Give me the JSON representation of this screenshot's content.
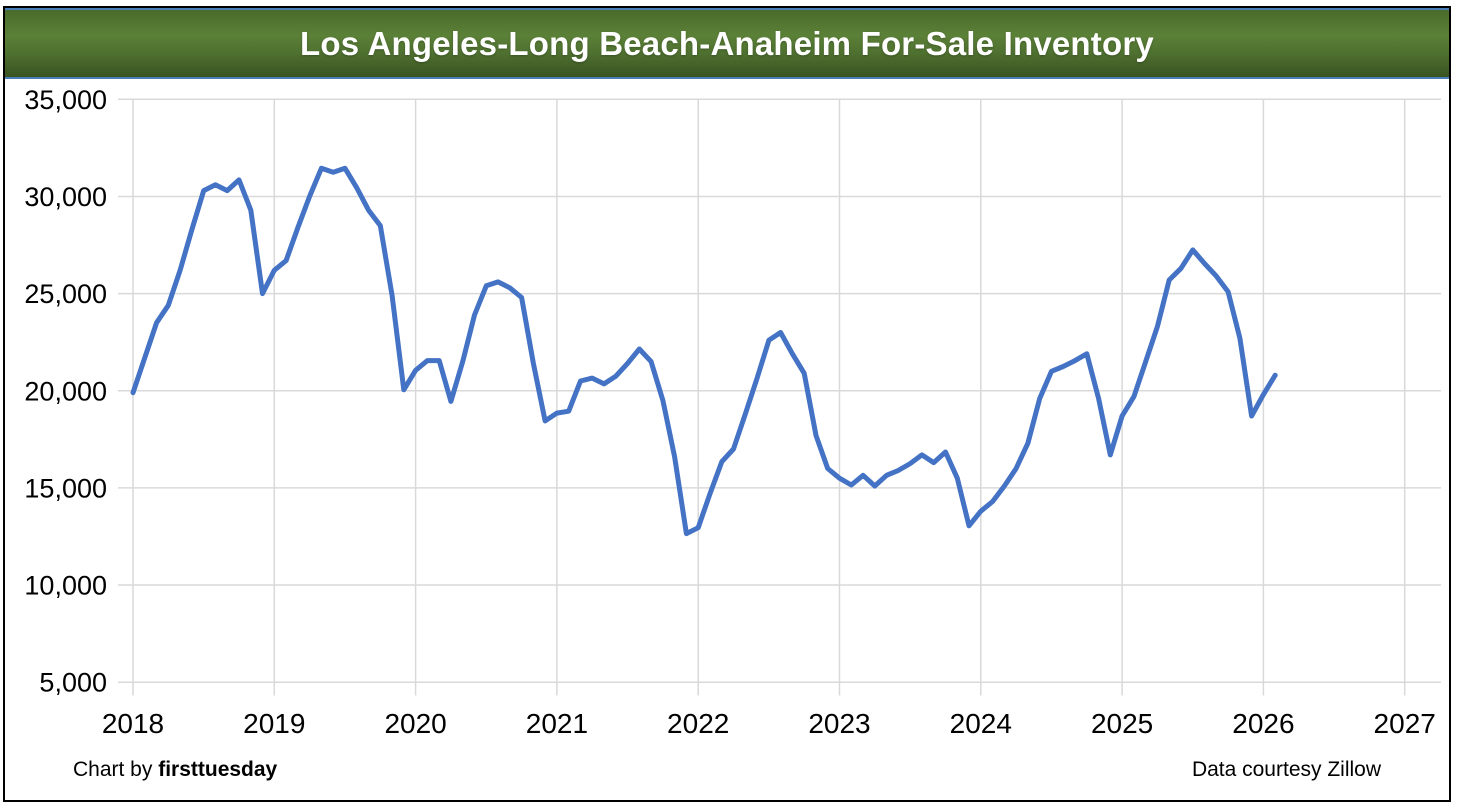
{
  "chart_data": {
    "type": "line",
    "title": "Los Angeles-Long Beach-Anaheim For-Sale Inventory",
    "xlabel": "",
    "ylabel": "",
    "x_axis": {
      "tick_labels": [
        "2018",
        "2019",
        "2020",
        "2021",
        "2022",
        "2023",
        "2024",
        "2025",
        "2026",
        "2027"
      ]
    },
    "y_axis": {
      "tick_labels": [
        "35,000",
        "30,000",
        "25,000",
        "20,000",
        "15,000",
        "10,000",
        "5,000"
      ],
      "tick_values": [
        35000,
        30000,
        25000,
        20000,
        15000,
        10000,
        5000
      ]
    },
    "ylim": [
      5000,
      35000
    ],
    "grid": true,
    "legend_position": "none",
    "series": [
      {
        "name": "For-sale inventory",
        "frequency": "monthly",
        "start_month": "2018-01",
        "end_month": "2026-02",
        "values": [
          19900,
          21700,
          23500,
          24400,
          26200,
          28300,
          30300,
          30600,
          30300,
          30850,
          29300,
          25000,
          26200,
          26700,
          28400,
          30000,
          31450,
          31250,
          31450,
          30450,
          29300,
          28500,
          24900,
          20050,
          21050,
          21550,
          21550,
          19450,
          21500,
          23900,
          25400,
          25600,
          25300,
          24800,
          21400,
          18450,
          18850,
          18950,
          20500,
          20650,
          20350,
          20750,
          21400,
          22150,
          21500,
          19500,
          16600,
          12650,
          12950,
          14700,
          16350,
          17000,
          18800,
          20650,
          22600,
          23000,
          21900,
          20900,
          17700,
          16000,
          15500,
          15150,
          15650,
          15100,
          15650,
          15900,
          16250,
          16700,
          16300,
          16850,
          15500,
          13050,
          13800,
          14300,
          15100,
          16000,
          17300,
          19600,
          21000,
          21250,
          21550,
          21900,
          19600,
          16700,
          18700,
          19700,
          21500,
          23300,
          25700,
          26300,
          27250,
          26550,
          25900,
          25100,
          22700,
          18700,
          19800,
          20800
        ]
      }
    ]
  },
  "footer": {
    "left_prefix": "Chart by ",
    "left_brand": "firsttuesday",
    "right": "Data courtesy Zillow"
  },
  "colors": {
    "line": "#4472C4",
    "grid": "#D9D9D9",
    "banner_border": "#4a7ebb",
    "banner_green_top": "#4a6b2b",
    "banner_green_mid": "#5b8037",
    "banner_green_bottom": "#3a5322",
    "frame_border": "#000000",
    "text": "#000000"
  }
}
